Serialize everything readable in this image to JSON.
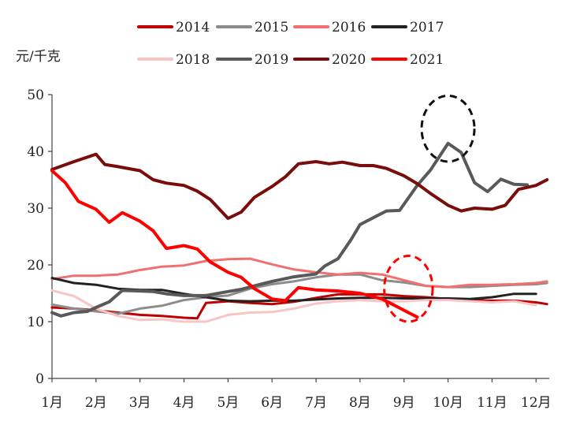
{
  "chart_data": {
    "type": "line",
    "ylabel": "元/千克",
    "ylim": [
      0,
      50
    ],
    "yticks": [
      0,
      10,
      20,
      30,
      40,
      50
    ],
    "categories": [
      "1月",
      "2月",
      "3月",
      "4月",
      "5月",
      "6月",
      "7月",
      "8月",
      "9月",
      "10月",
      "11月",
      "12月"
    ],
    "x_range": [
      1,
      12.3
    ],
    "grid": false,
    "legend_position": "top",
    "series": [
      {
        "name": "2014",
        "color": "#c00000",
        "width": 3,
        "points": [
          [
            1,
            12.5
          ],
          [
            1.5,
            12.3
          ],
          [
            2,
            12
          ],
          [
            2.5,
            11.6
          ],
          [
            3,
            11.2
          ],
          [
            3.5,
            11
          ],
          [
            4,
            10.7
          ],
          [
            4.3,
            10.6
          ],
          [
            4.5,
            13.3
          ],
          [
            5,
            13.6
          ],
          [
            5.5,
            13.3
          ],
          [
            6,
            13.1
          ],
          [
            6.5,
            13.5
          ],
          [
            7,
            14.2
          ],
          [
            7.5,
            14.8
          ],
          [
            8,
            14.8
          ],
          [
            8.5,
            14.8
          ],
          [
            9,
            14.5
          ],
          [
            9.5,
            14.3
          ],
          [
            10,
            14
          ],
          [
            10.5,
            13.8
          ],
          [
            11,
            13.7
          ],
          [
            11.5,
            13.7
          ],
          [
            12,
            13.4
          ],
          [
            12.25,
            13.1
          ]
        ]
      },
      {
        "name": "2015",
        "color": "#8c8c8c",
        "width": 3,
        "points": [
          [
            1,
            13
          ],
          [
            1.5,
            12.3
          ],
          [
            2,
            11.8
          ],
          [
            2.5,
            11.4
          ],
          [
            3,
            12.3
          ],
          [
            3.5,
            12.8
          ],
          [
            4,
            13.8
          ],
          [
            4.5,
            14.3
          ],
          [
            5,
            14.6
          ],
          [
            5.5,
            15.8
          ],
          [
            6,
            16.6
          ],
          [
            6.5,
            17.1
          ],
          [
            7,
            17.8
          ],
          [
            7.5,
            18.3
          ],
          [
            8,
            18.3
          ],
          [
            8.5,
            17.3
          ],
          [
            9,
            16.9
          ],
          [
            9.5,
            16.3
          ],
          [
            10,
            16.1
          ],
          [
            10.5,
            16.1
          ],
          [
            11,
            16.3
          ],
          [
            11.5,
            16.5
          ],
          [
            12,
            16.6
          ],
          [
            12.25,
            16.8
          ]
        ]
      },
      {
        "name": "2016",
        "color": "#f07070",
        "width": 3,
        "points": [
          [
            1,
            17.5
          ],
          [
            1.5,
            18.1
          ],
          [
            2,
            18.1
          ],
          [
            2.5,
            18.3
          ],
          [
            3,
            19.1
          ],
          [
            3.5,
            19.7
          ],
          [
            4,
            19.9
          ],
          [
            4.5,
            20.7
          ],
          [
            5,
            21
          ],
          [
            5.5,
            21.1
          ],
          [
            6,
            20.1
          ],
          [
            6.5,
            19.2
          ],
          [
            7,
            18.7
          ],
          [
            7.5,
            18.3
          ],
          [
            8,
            18.6
          ],
          [
            8.5,
            18.3
          ],
          [
            9,
            17.3
          ],
          [
            9.5,
            16.3
          ],
          [
            10,
            16.1
          ],
          [
            10.5,
            16.5
          ],
          [
            11,
            16.5
          ],
          [
            11.5,
            16.6
          ],
          [
            12,
            16.8
          ],
          [
            12.25,
            17.1
          ]
        ]
      },
      {
        "name": "2017",
        "color": "#222222",
        "width": 3,
        "points": [
          [
            1,
            17.7
          ],
          [
            1.5,
            16.8
          ],
          [
            2,
            16.5
          ],
          [
            2.5,
            15.8
          ],
          [
            3,
            15.6
          ],
          [
            3.5,
            15.6
          ],
          [
            4,
            14.9
          ],
          [
            4.5,
            14.3
          ],
          [
            5,
            13.7
          ],
          [
            5.5,
            13.6
          ],
          [
            6,
            13.7
          ],
          [
            6.5,
            13.7
          ],
          [
            7,
            13.9
          ],
          [
            7.5,
            14.1
          ],
          [
            8,
            14.2
          ],
          [
            8.5,
            14.2
          ],
          [
            9,
            14.1
          ],
          [
            9.5,
            14.1
          ],
          [
            10,
            14.1
          ],
          [
            10.5,
            14
          ],
          [
            11,
            14.3
          ],
          [
            11.5,
            14.9
          ],
          [
            12,
            14.9
          ]
        ]
      },
      {
        "name": "2018",
        "color": "#f8c4c4",
        "width": 3,
        "points": [
          [
            1,
            15.5
          ],
          [
            1.5,
            14.5
          ],
          [
            2,
            12.3
          ],
          [
            2.5,
            11
          ],
          [
            3,
            10.3
          ],
          [
            3.5,
            10.4
          ],
          [
            4,
            10
          ],
          [
            4.5,
            10
          ],
          [
            5,
            11.2
          ],
          [
            5.5,
            11.6
          ],
          [
            6,
            11.7
          ],
          [
            6.5,
            12.3
          ],
          [
            7,
            13.2
          ],
          [
            7.5,
            13.6
          ],
          [
            8,
            13.8
          ],
          [
            8.5,
            13.6
          ],
          [
            9,
            13.6
          ],
          [
            9.5,
            13.8
          ],
          [
            10,
            13.8
          ],
          [
            10.5,
            13.6
          ],
          [
            11,
            13.4
          ],
          [
            11.5,
            13.6
          ],
          [
            12,
            12.9
          ]
        ]
      },
      {
        "name": "2019",
        "color": "#595959",
        "width": 4,
        "points": [
          [
            1,
            11.6
          ],
          [
            1.2,
            11
          ],
          [
            1.5,
            11.6
          ],
          [
            1.8,
            11.8
          ],
          [
            2,
            12.5
          ],
          [
            2.3,
            13.5
          ],
          [
            2.6,
            15.5
          ],
          [
            3,
            15.4
          ],
          [
            3.3,
            15.3
          ],
          [
            3.6,
            14.9
          ],
          [
            4,
            14.6
          ],
          [
            4.5,
            14.6
          ],
          [
            5,
            15.3
          ],
          [
            5.3,
            15.7
          ],
          [
            5.6,
            16.3
          ],
          [
            6,
            17.1
          ],
          [
            6.5,
            17.9
          ],
          [
            7,
            18.4
          ],
          [
            7.2,
            19.8
          ],
          [
            7.5,
            21.1
          ],
          [
            7.8,
            24.5
          ],
          [
            8,
            27.1
          ],
          [
            8.3,
            28.3
          ],
          [
            8.6,
            29.5
          ],
          [
            8.9,
            29.6
          ],
          [
            9.3,
            34
          ],
          [
            9.6,
            36.7
          ],
          [
            10,
            41.4
          ],
          [
            10.3,
            39.8
          ],
          [
            10.6,
            34.5
          ],
          [
            10.9,
            32.9
          ],
          [
            11.2,
            35.1
          ],
          [
            11.5,
            34.2
          ],
          [
            11.8,
            34.1
          ]
        ]
      },
      {
        "name": "2020",
        "color": "#7b0c0c",
        "width": 4,
        "points": [
          [
            1,
            36.8
          ],
          [
            1.5,
            38.2
          ],
          [
            2,
            39.5
          ],
          [
            2.2,
            37.7
          ],
          [
            2.5,
            37.3
          ],
          [
            3,
            36.6
          ],
          [
            3.3,
            35
          ],
          [
            3.6,
            34.4
          ],
          [
            4,
            34
          ],
          [
            4.3,
            33
          ],
          [
            4.6,
            31.5
          ],
          [
            5,
            28.2
          ],
          [
            5.3,
            29.3
          ],
          [
            5.6,
            31.9
          ],
          [
            6,
            33.8
          ],
          [
            6.3,
            35.5
          ],
          [
            6.6,
            37.8
          ],
          [
            7,
            38.2
          ],
          [
            7.3,
            37.8
          ],
          [
            7.6,
            38.1
          ],
          [
            8,
            37.5
          ],
          [
            8.3,
            37.5
          ],
          [
            8.6,
            37
          ],
          [
            9,
            35.7
          ],
          [
            9.3,
            34.3
          ],
          [
            9.6,
            32.6
          ],
          [
            10,
            30.5
          ],
          [
            10.3,
            29.5
          ],
          [
            10.6,
            30
          ],
          [
            11,
            29.8
          ],
          [
            11.3,
            30.5
          ],
          [
            11.6,
            33.3
          ],
          [
            12,
            34
          ],
          [
            12.25,
            35
          ]
        ]
      },
      {
        "name": "2021",
        "color": "#ff0000",
        "width": 4,
        "points": [
          [
            1,
            36.6
          ],
          [
            1.3,
            34.5
          ],
          [
            1.6,
            31.2
          ],
          [
            2,
            29.8
          ],
          [
            2.3,
            27.5
          ],
          [
            2.6,
            29.2
          ],
          [
            3,
            27.7
          ],
          [
            3.3,
            26
          ],
          [
            3.6,
            22.9
          ],
          [
            4,
            23.4
          ],
          [
            4.3,
            22.8
          ],
          [
            4.6,
            20.5
          ],
          [
            5,
            18.7
          ],
          [
            5.3,
            17.8
          ],
          [
            5.6,
            15.8
          ],
          [
            6,
            14
          ],
          [
            6.3,
            13.7
          ],
          [
            6.6,
            16
          ],
          [
            7,
            15.6
          ],
          [
            7.5,
            15.4
          ],
          [
            8,
            15
          ],
          [
            8.5,
            14
          ],
          [
            8.8,
            12.8
          ],
          [
            9.1,
            11.6
          ],
          [
            9.3,
            10.8
          ]
        ]
      }
    ],
    "annotations": [
      {
        "shape": "ellipse",
        "style": "dashed",
        "color": "#111111",
        "center": [
          10,
          44
        ],
        "radius_x": 0.6,
        "radius_y": 5.8
      },
      {
        "shape": "ellipse",
        "style": "dashed",
        "color": "#ff0000",
        "center": [
          9.1,
          15.8
        ],
        "radius_x": 0.55,
        "radius_y": 5.8
      }
    ]
  }
}
